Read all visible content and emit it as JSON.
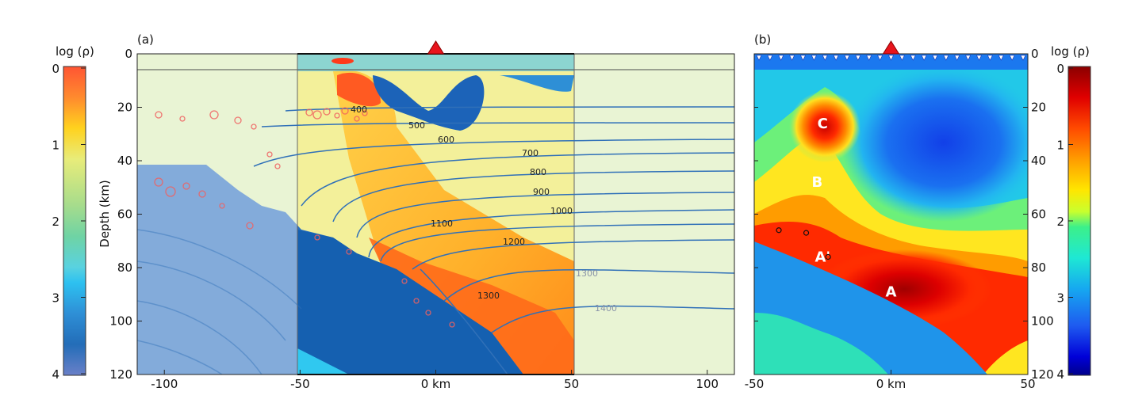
{
  "chart_data": [
    {
      "type": "heatmap",
      "panel_label": "(a)",
      "ylabel": "Depth (km)",
      "x_ticks": [
        {
          "value": -100,
          "label": "-100"
        },
        {
          "value": -50,
          "label": "-50"
        },
        {
          "value": 0,
          "label": "0 km"
        },
        {
          "value": 50,
          "label": "50"
        },
        {
          "value": 100,
          "label": "100"
        }
      ],
      "y_ticks": [
        0,
        20,
        40,
        60,
        80,
        100,
        120
      ],
      "xlim": [
        -110,
        110
      ],
      "ylim": [
        120,
        0
      ],
      "highlight_window_x": [
        -50,
        50
      ],
      "station_x": 0,
      "colorbar": {
        "label": "log (ρ)",
        "ticks": [
          "0",
          "1",
          "2",
          "3",
          "4"
        ],
        "side": "left"
      },
      "isotherms": [
        {
          "label": "400"
        },
        {
          "label": "500"
        },
        {
          "label": "600"
        },
        {
          "label": "700"
        },
        {
          "label": "800"
        },
        {
          "label": "900"
        },
        {
          "label": "1000"
        },
        {
          "label": "1100"
        },
        {
          "label": "1200"
        },
        {
          "label": "1300"
        },
        {
          "label": "1400"
        }
      ],
      "seismicity": "red circles (earthquake hypocenters)"
    },
    {
      "type": "heatmap",
      "panel_label": "(b)",
      "x_ticks": [
        {
          "value": -50,
          "label": "-50"
        },
        {
          "value": 0,
          "label": "0 km"
        },
        {
          "value": 50,
          "label": "50"
        }
      ],
      "y_ticks": [
        0,
        20,
        40,
        60,
        80,
        100,
        120
      ],
      "xlim": [
        -50,
        50
      ],
      "ylim": [
        120,
        0
      ],
      "y_axis_side": "right",
      "station_x": 0,
      "colorbar": {
        "label": "log (ρ)",
        "ticks": [
          "0",
          "1",
          "2",
          "3",
          "4"
        ],
        "side": "right"
      },
      "regions": [
        {
          "label": "C",
          "x": -25,
          "depth": 26
        },
        {
          "label": "B",
          "x": -27,
          "depth": 48
        },
        {
          "label": "A'",
          "x": -25,
          "depth": 76
        },
        {
          "label": "A",
          "x": 0,
          "depth": 89
        }
      ],
      "earthquakes": [
        {
          "x": -41,
          "depth": 66
        },
        {
          "x": -31,
          "depth": 67
        },
        {
          "x": -23,
          "depth": 76
        }
      ]
    }
  ]
}
